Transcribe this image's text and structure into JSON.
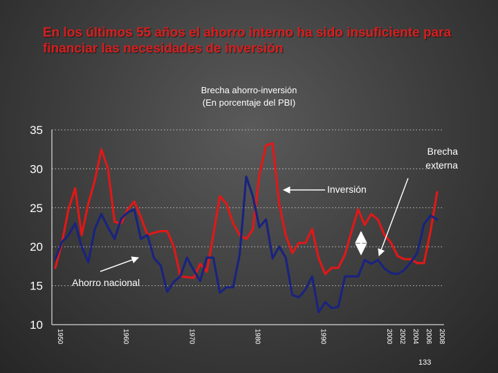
{
  "slide": {
    "title": "En los últimos 55 años el ahorro interno ha sido insuficiente para financiar las necesidades de inversión",
    "page_number": "133"
  },
  "colors": {
    "inversion": "#e01818",
    "ahorro": "#1a237e",
    "title": "#d81e1e",
    "annotation": "#ffffff",
    "gridline": "#c8c8c8"
  },
  "chart_data": {
    "type": "line",
    "title": "Brecha ahorro-inversión",
    "subtitle": "(En porcentaje del PBI)",
    "xlabel": "",
    "ylabel": "",
    "ylim": [
      10,
      35
    ],
    "yticks": [
      35,
      30,
      25,
      20,
      15,
      10
    ],
    "xlim": [
      1950,
      2008
    ],
    "xticks": [
      "1950",
      "1960",
      "1970",
      "1980",
      "1990",
      "2000",
      "2002",
      "2004",
      "2006",
      "2008"
    ],
    "grid": "horizontal dotted",
    "series": [
      {
        "name": "Inversión",
        "color": "#e01818",
        "x": [
          1950,
          1951,
          1952,
          1953,
          1954,
          1955,
          1956,
          1957,
          1958,
          1959,
          1960,
          1961,
          1962,
          1963,
          1964,
          1965,
          1966,
          1967,
          1968,
          1969,
          1970,
          1971,
          1972,
          1973,
          1974,
          1975,
          1976,
          1977,
          1978,
          1979,
          1980,
          1981,
          1982,
          1983,
          1984,
          1985,
          1986,
          1987,
          1988,
          1989,
          1990,
          1991,
          1992,
          1993,
          1994,
          1995,
          1996,
          1997,
          1998,
          1999,
          2000,
          2001,
          2002,
          2003,
          2004,
          2005,
          2006,
          2007,
          2008
        ],
        "values": [
          17.3,
          20.5,
          24.8,
          27.5,
          21.5,
          25.5,
          28.5,
          32.5,
          30.0,
          23.2,
          23.0,
          24.8,
          25.8,
          23.8,
          21.5,
          21.8,
          22.0,
          22.0,
          20.0,
          16.2,
          16.1,
          16.0,
          17.8,
          16.8,
          21.5,
          26.5,
          25.5,
          23.0,
          21.5,
          21.0,
          22.2,
          29.2,
          33.0,
          33.3,
          25.5,
          21.5,
          19.2,
          20.5,
          20.5,
          22.3,
          18.5,
          16.5,
          17.3,
          17.3,
          19.0,
          22.0,
          24.8,
          22.8,
          24.2,
          23.5,
          21.5,
          20.5,
          18.8,
          18.4,
          18.4,
          17.9,
          17.9,
          22.0,
          27.0
        ]
      },
      {
        "name": "Ahorro nacional",
        "color": "#1a237e",
        "x": [
          1950,
          1951,
          1952,
          1953,
          1954,
          1955,
          1956,
          1957,
          1958,
          1959,
          1960,
          1961,
          1962,
          1963,
          1964,
          1965,
          1966,
          1967,
          1968,
          1969,
          1970,
          1971,
          1972,
          1973,
          1974,
          1975,
          1976,
          1977,
          1978,
          1979,
          1980,
          1981,
          1982,
          1983,
          1984,
          1985,
          1986,
          1987,
          1988,
          1989,
          1990,
          1991,
          1992,
          1993,
          1994,
          1995,
          1996,
          1997,
          1998,
          1999,
          2000,
          2001,
          2002,
          2003,
          2004,
          2005,
          2006,
          2007,
          2008
        ],
        "values": [
          18.4,
          20.6,
          21.5,
          23.0,
          20.0,
          18.0,
          22.3,
          24.2,
          22.5,
          21.0,
          23.6,
          24.4,
          24.8,
          21.0,
          21.5,
          18.5,
          17.6,
          14.2,
          15.5,
          16.2,
          18.6,
          17.0,
          15.6,
          18.6,
          18.6,
          14.1,
          14.8,
          14.8,
          19.0,
          29.0,
          26.5,
          22.5,
          23.5,
          18.5,
          20.0,
          18.6,
          13.8,
          13.5,
          14.5,
          16.2,
          11.6,
          12.9,
          12.1,
          12.3,
          16.2,
          16.2,
          16.2,
          18.3,
          17.8,
          18.3,
          17.2,
          16.6,
          16.5,
          17.0,
          18.0,
          19.2,
          22.9,
          24.0,
          23.5
        ]
      }
    ],
    "annotations": [
      {
        "text": "Inversión"
      },
      {
        "text": "Ahorro nacional"
      },
      {
        "text": "Brecha externa",
        "lines": [
          "Brecha",
          "externa"
        ]
      }
    ]
  }
}
